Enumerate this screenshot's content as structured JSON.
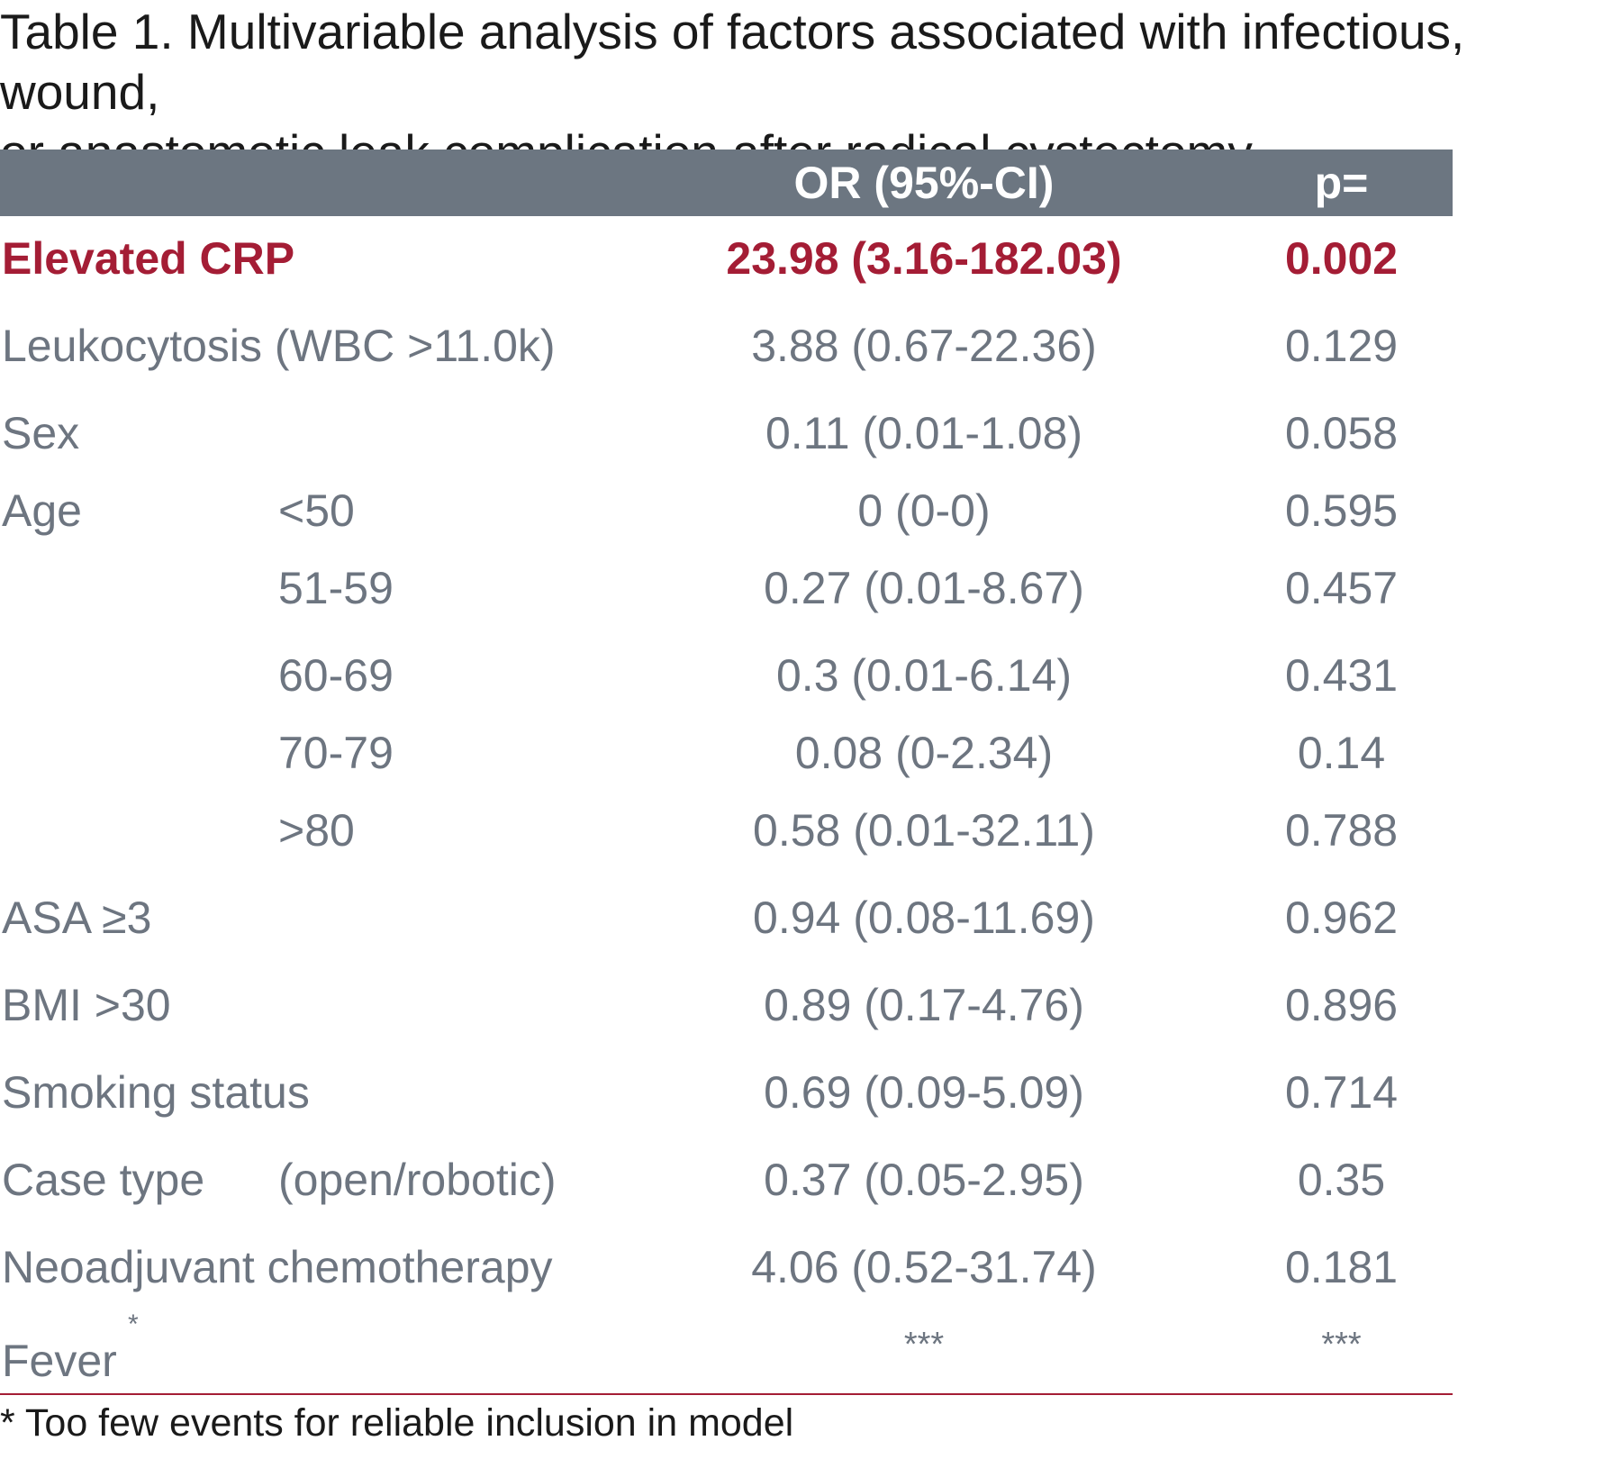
{
  "title": {
    "line1": "Table 1. Multivariable analysis of factors associated with infectious, wound,",
    "line2": "or anastomotic leak complication after radical cystectomy."
  },
  "table": {
    "headers": {
      "label": "",
      "or": "OR (95%-CI)",
      "p": "p="
    },
    "rows": [
      {
        "label": "Elevated CRP",
        "sub": "",
        "or": "23.98 (3.16-182.03)",
        "p": "0.002",
        "highlight": true
      },
      {
        "label": "Leukocytosis (WBC >11.0k)",
        "sub": "",
        "or": "3.88 (0.67-22.36)",
        "p": "0.129"
      },
      {
        "label": "Sex",
        "sub": "",
        "or": "0.11 (0.01-1.08)",
        "p": "0.058"
      },
      {
        "label": "Age",
        "sub": "<50",
        "or": "0 (0-0)",
        "p": "0.595"
      },
      {
        "label": "",
        "sub": "51-59",
        "or": "0.27 (0.01-8.67)",
        "p": "0.457"
      },
      {
        "label": "",
        "sub": "60-69",
        "or": "0.3 (0.01-6.14)",
        "p": "0.431"
      },
      {
        "label": "",
        "sub": "70-79",
        "or": "0.08 (0-2.34)",
        "p": "0.14"
      },
      {
        "label": "",
        "sub": ">80",
        "or": "0.58 (0.01-32.11)",
        "p": "0.788"
      },
      {
        "label": "ASA ≥3",
        "sub": "",
        "or": "0.94 (0.08-11.69)",
        "p": "0.962"
      },
      {
        "label": "BMI >30",
        "sub": "",
        "or": "0.89 (0.17-4.76)",
        "p": "0.896"
      },
      {
        "label": "Smoking status",
        "sub": "",
        "or": "0.69 (0.09-5.09)",
        "p": "0.714"
      },
      {
        "label": "Case type",
        "sub": "(open/robotic)",
        "or": "0.37 (0.05-2.95)",
        "p": "0.35"
      },
      {
        "label": "Neoadjuvant chemotherapy",
        "sub": "",
        "or": "4.06 (0.52-31.74)",
        "p": "0.181"
      },
      {
        "label": "Fever",
        "label_sup": "*",
        "sub": "",
        "or": "***",
        "p": "***"
      }
    ]
  },
  "footnote": "* Too few events for reliable inclusion in model",
  "colors": {
    "header_bg": "#6c7681",
    "header_text": "#ffffff",
    "body_text": "#6d7580",
    "highlight": "#a41d35",
    "rule": "#a41d35"
  }
}
